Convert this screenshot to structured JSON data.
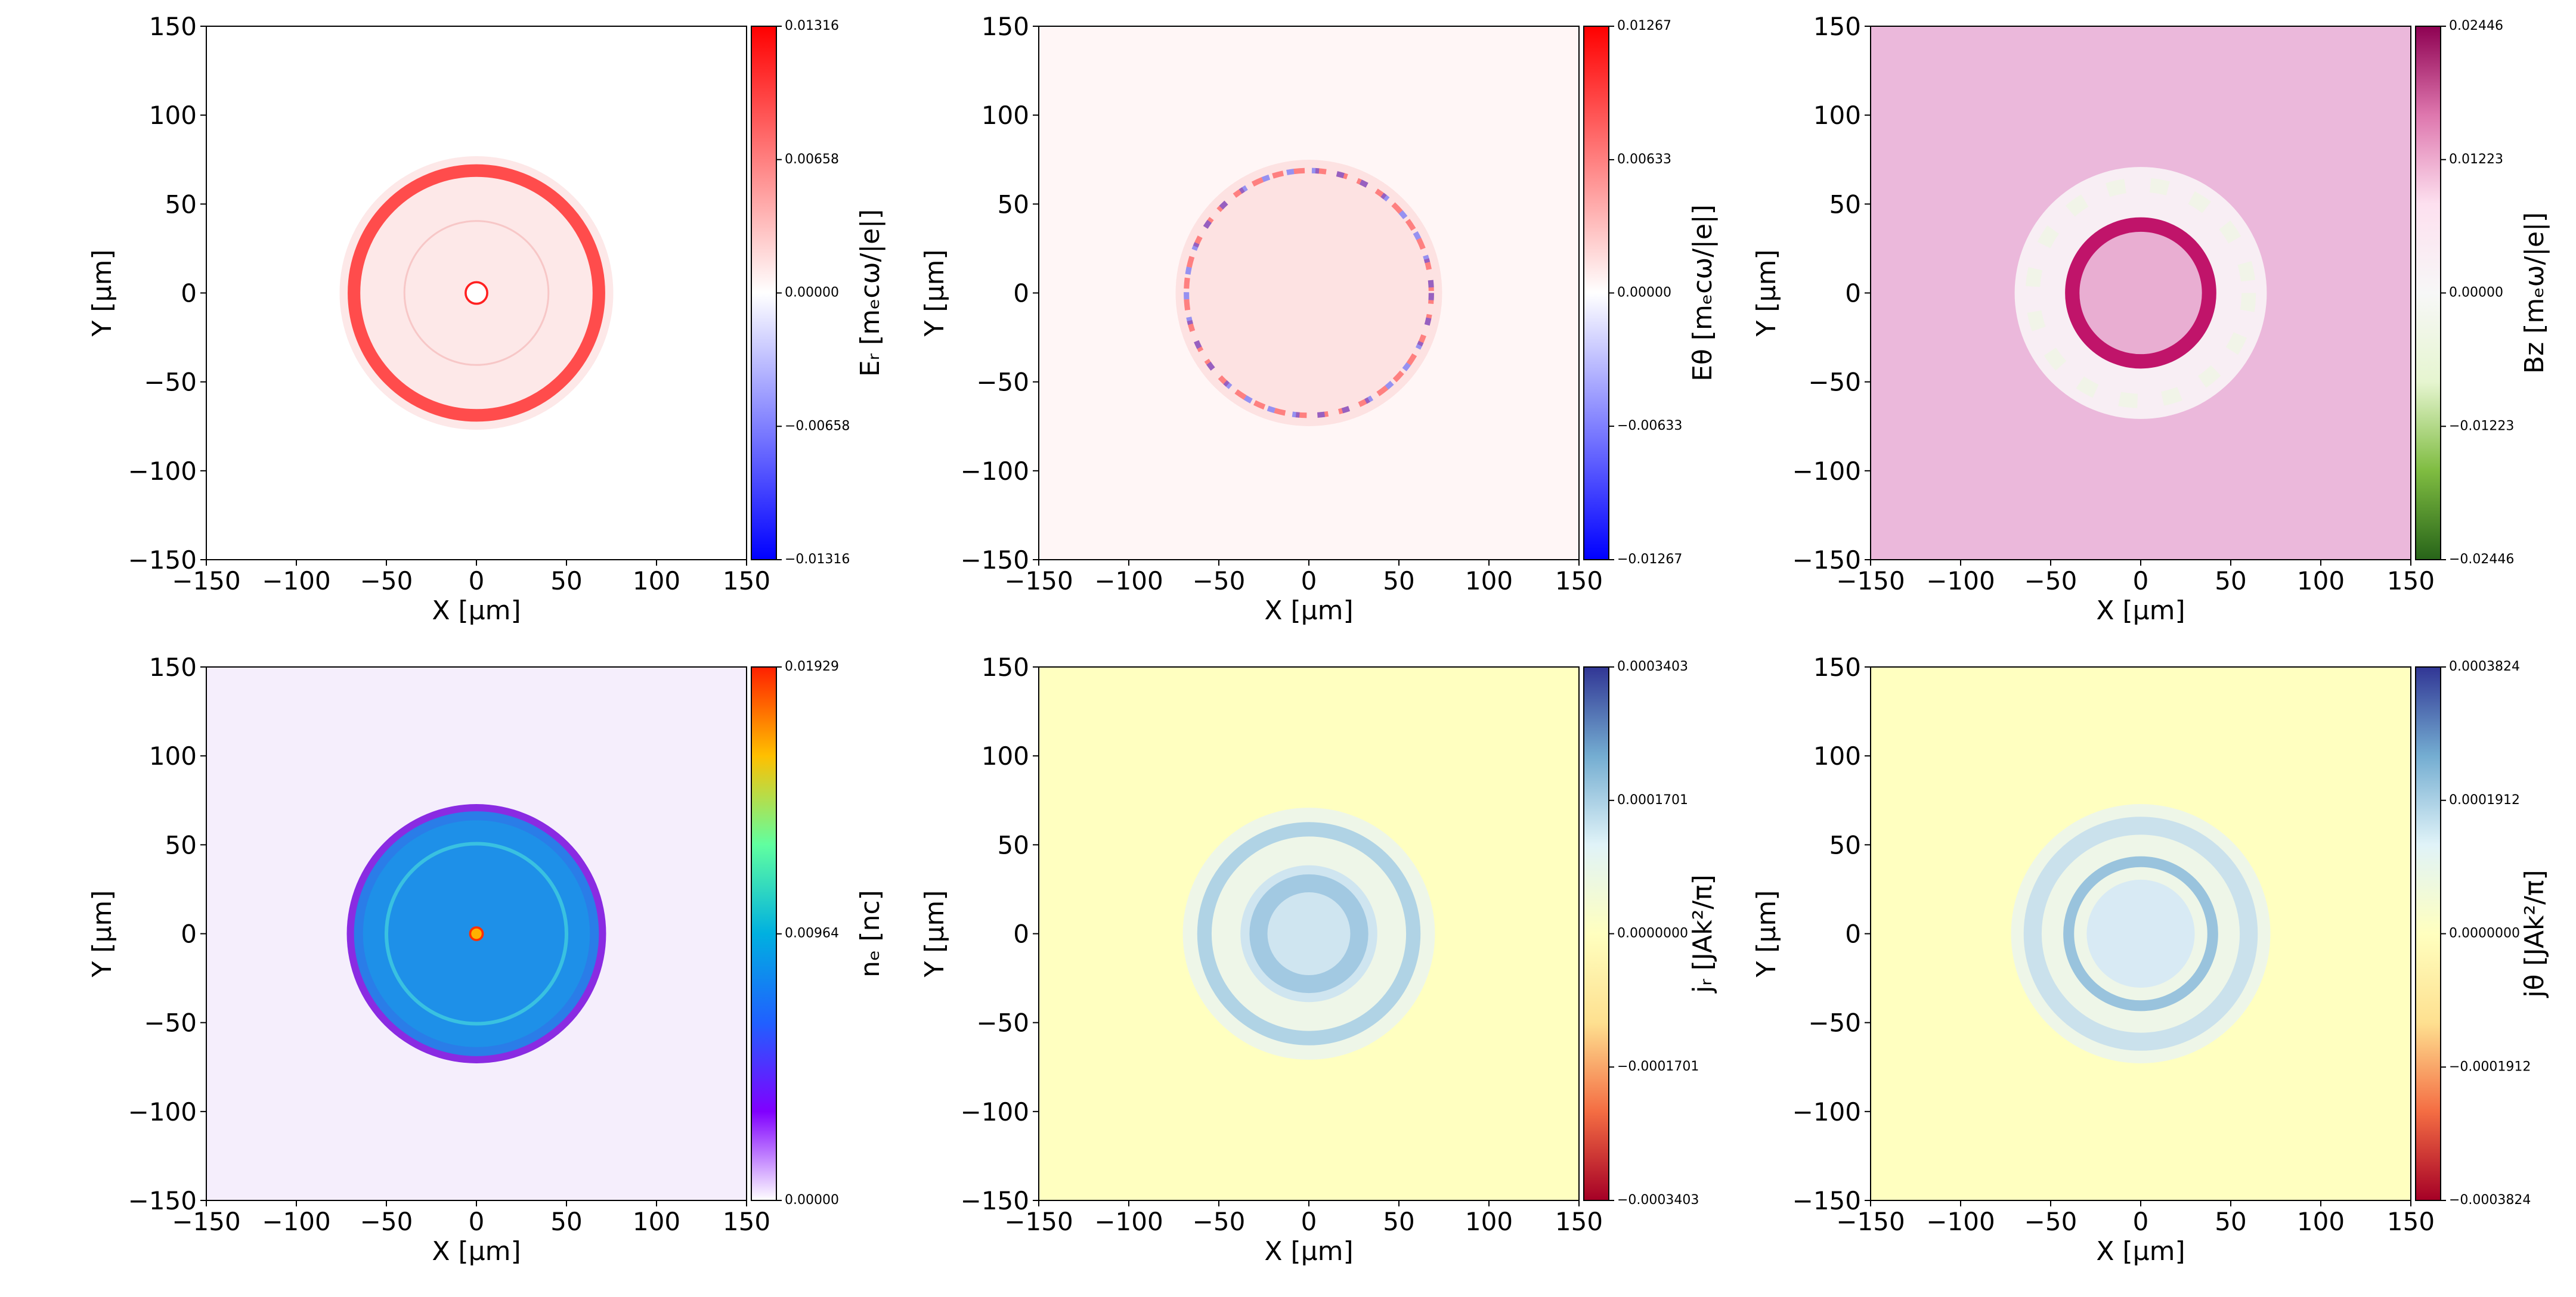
{
  "chart_data": [
    {
      "type": "heatmap",
      "xlabel": "X  [μm]",
      "ylabel": "Y  [μm]",
      "xlim": [
        -150,
        150
      ],
      "ylim": [
        -150,
        150
      ],
      "xticks": [
        {
          "value": -150,
          "label": "−150"
        },
        {
          "value": -100,
          "label": "−100"
        },
        {
          "value": -50,
          "label": "−50"
        },
        0,
        50,
        100,
        150
      ],
      "yticks": [
        {
          "value": -150,
          "label": "−150"
        },
        {
          "value": -100,
          "label": "−100"
        },
        {
          "value": -50,
          "label": "−50"
        },
        0,
        50,
        100,
        150
      ],
      "colorbar": {
        "label": "Eᵣ [mₑcω/|e|]",
        "lim": [
          -0.01316,
          0.01316
        ],
        "colors": [
          "#0000ff",
          "#ffffff",
          "#ff0000"
        ],
        "ticks": [
          {
            "value": -0.01316,
            "label": "−0.01316"
          },
          {
            "value": -0.00658,
            "label": "−0.00658"
          },
          {
            "value": 0,
            "label": "0.00000"
          },
          0.00658,
          0.01316
        ]
      }
    },
    {
      "type": "heatmap",
      "xlabel": "X  [μm]",
      "ylabel": "Y  [μm]",
      "xlim": [
        -150,
        150
      ],
      "ylim": [
        -150,
        150
      ],
      "xticks": [
        {
          "value": -150,
          "label": "−150"
        },
        {
          "value": -100,
          "label": "−100"
        },
        {
          "value": -50,
          "label": "−50"
        },
        0,
        50,
        100,
        150
      ],
      "yticks": [
        {
          "value": -150,
          "label": "−150"
        },
        {
          "value": -100,
          "label": "−100"
        },
        {
          "value": -50,
          "label": "−50"
        },
        0,
        50,
        100,
        150
      ],
      "colorbar": {
        "label": "Eθ [mₑcω/|e|]",
        "lim": [
          -0.01267,
          0.01267
        ],
        "colors": [
          "#0000ff",
          "#ffffff",
          "#ff0000"
        ],
        "ticks": [
          {
            "value": -0.01267,
            "label": "−0.01267"
          },
          {
            "value": -0.00633,
            "label": "−0.00633"
          },
          {
            "value": 0,
            "label": "0.00000"
          },
          0.00633,
          0.01267
        ]
      }
    },
    {
      "type": "heatmap",
      "xlabel": "X  [μm]",
      "ylabel": "Y  [μm]",
      "xlim": [
        -150,
        150
      ],
      "ylim": [
        -150,
        150
      ],
      "xticks": [
        {
          "value": -150,
          "label": "−150"
        },
        {
          "value": -100,
          "label": "−100"
        },
        {
          "value": -50,
          "label": "−50"
        },
        0,
        50,
        100,
        150
      ],
      "yticks": [
        {
          "value": -150,
          "label": "−150"
        },
        {
          "value": -100,
          "label": "−100"
        },
        {
          "value": -50,
          "label": "−50"
        },
        0,
        50,
        100,
        150
      ],
      "colorbar": {
        "label": "Bz [mₑω/|e|]",
        "lim": [
          -0.02446,
          0.02446
        ],
        "colors": [
          "#276419",
          "#7fbc41",
          "#e6f5d0",
          "#f7f7f7",
          "#fde0ef",
          "#de77ae",
          "#8e0152"
        ],
        "ticks": [
          {
            "value": -0.02446,
            "label": "−0.02446"
          },
          {
            "value": -0.01223,
            "label": "−0.01223"
          },
          {
            "value": 0,
            "label": "0.00000"
          },
          0.01223,
          0.02446
        ]
      }
    },
    {
      "type": "heatmap",
      "xlabel": "X  [μm]",
      "ylabel": "Y  [μm]",
      "xlim": [
        -150,
        150
      ],
      "ylim": [
        -150,
        150
      ],
      "xticks": [
        {
          "value": -150,
          "label": "−150"
        },
        {
          "value": -100,
          "label": "−100"
        },
        {
          "value": -50,
          "label": "−50"
        },
        0,
        50,
        100,
        150
      ],
      "yticks": [
        {
          "value": -150,
          "label": "−150"
        },
        {
          "value": -100,
          "label": "−100"
        },
        {
          "value": -50,
          "label": "−50"
        },
        0,
        50,
        100,
        150
      ],
      "colorbar": {
        "label": "nₑ [nc]",
        "lim": [
          0,
          0.01929
        ],
        "colors": [
          "#ffffff",
          "#8000ff",
          "#2060ff",
          "#00b0e0",
          "#60ffa0",
          "#ffc000",
          "#ff2000"
        ],
        "ticks": [
          {
            "value": 0,
            "label": "0.00000"
          },
          0.00964,
          0.01929
        ]
      }
    },
    {
      "type": "heatmap",
      "xlabel": "X  [μm]",
      "ylabel": "Y  [μm]",
      "xlim": [
        -150,
        150
      ],
      "ylim": [
        -150,
        150
      ],
      "xticks": [
        {
          "value": -150,
          "label": "−150"
        },
        {
          "value": -100,
          "label": "−100"
        },
        {
          "value": -50,
          "label": "−50"
        },
        0,
        50,
        100,
        150
      ],
      "yticks": [
        {
          "value": -150,
          "label": "−150"
        },
        {
          "value": -100,
          "label": "−100"
        },
        {
          "value": -50,
          "label": "−50"
        },
        0,
        50,
        100,
        150
      ],
      "colorbar": {
        "label": "jᵣ [JAk²/π]",
        "lim": [
          -0.0003403,
          0.0003403
        ],
        "colors": [
          "#a50026",
          "#f46d43",
          "#fee090",
          "#ffffbf",
          "#e0f3f8",
          "#74add1",
          "#313695"
        ],
        "ticks": [
          {
            "value": -0.0003403,
            "label": "−0.0003403"
          },
          {
            "value": -0.0001701,
            "label": "−0.0001701"
          },
          {
            "value": 0,
            "label": "0.0000000"
          },
          0.0001701,
          0.0003403
        ]
      }
    },
    {
      "type": "heatmap",
      "xlabel": "X  [μm]",
      "ylabel": "Y  [μm]",
      "xlim": [
        -150,
        150
      ],
      "ylim": [
        -150,
        150
      ],
      "xticks": [
        {
          "value": -150,
          "label": "−150"
        },
        {
          "value": -100,
          "label": "−100"
        },
        {
          "value": -50,
          "label": "−50"
        },
        0,
        50,
        100,
        150
      ],
      "yticks": [
        {
          "value": -150,
          "label": "−150"
        },
        {
          "value": -100,
          "label": "−100"
        },
        {
          "value": -50,
          "label": "−50"
        },
        0,
        50,
        100,
        150
      ],
      "colorbar": {
        "label": "jθ [JAk²/π]",
        "lim": [
          -0.0003824,
          0.0003824
        ],
        "colors": [
          "#a50026",
          "#f46d43",
          "#fee090",
          "#ffffbf",
          "#e0f3f8",
          "#74add1",
          "#313695"
        ],
        "ticks": [
          {
            "value": -0.0003824,
            "label": "−0.0003824"
          },
          {
            "value": -0.0001912,
            "label": "−0.0001912"
          },
          {
            "value": 0,
            "label": "0.0000000"
          },
          0.0001912,
          0.0003824
        ]
      }
    }
  ]
}
